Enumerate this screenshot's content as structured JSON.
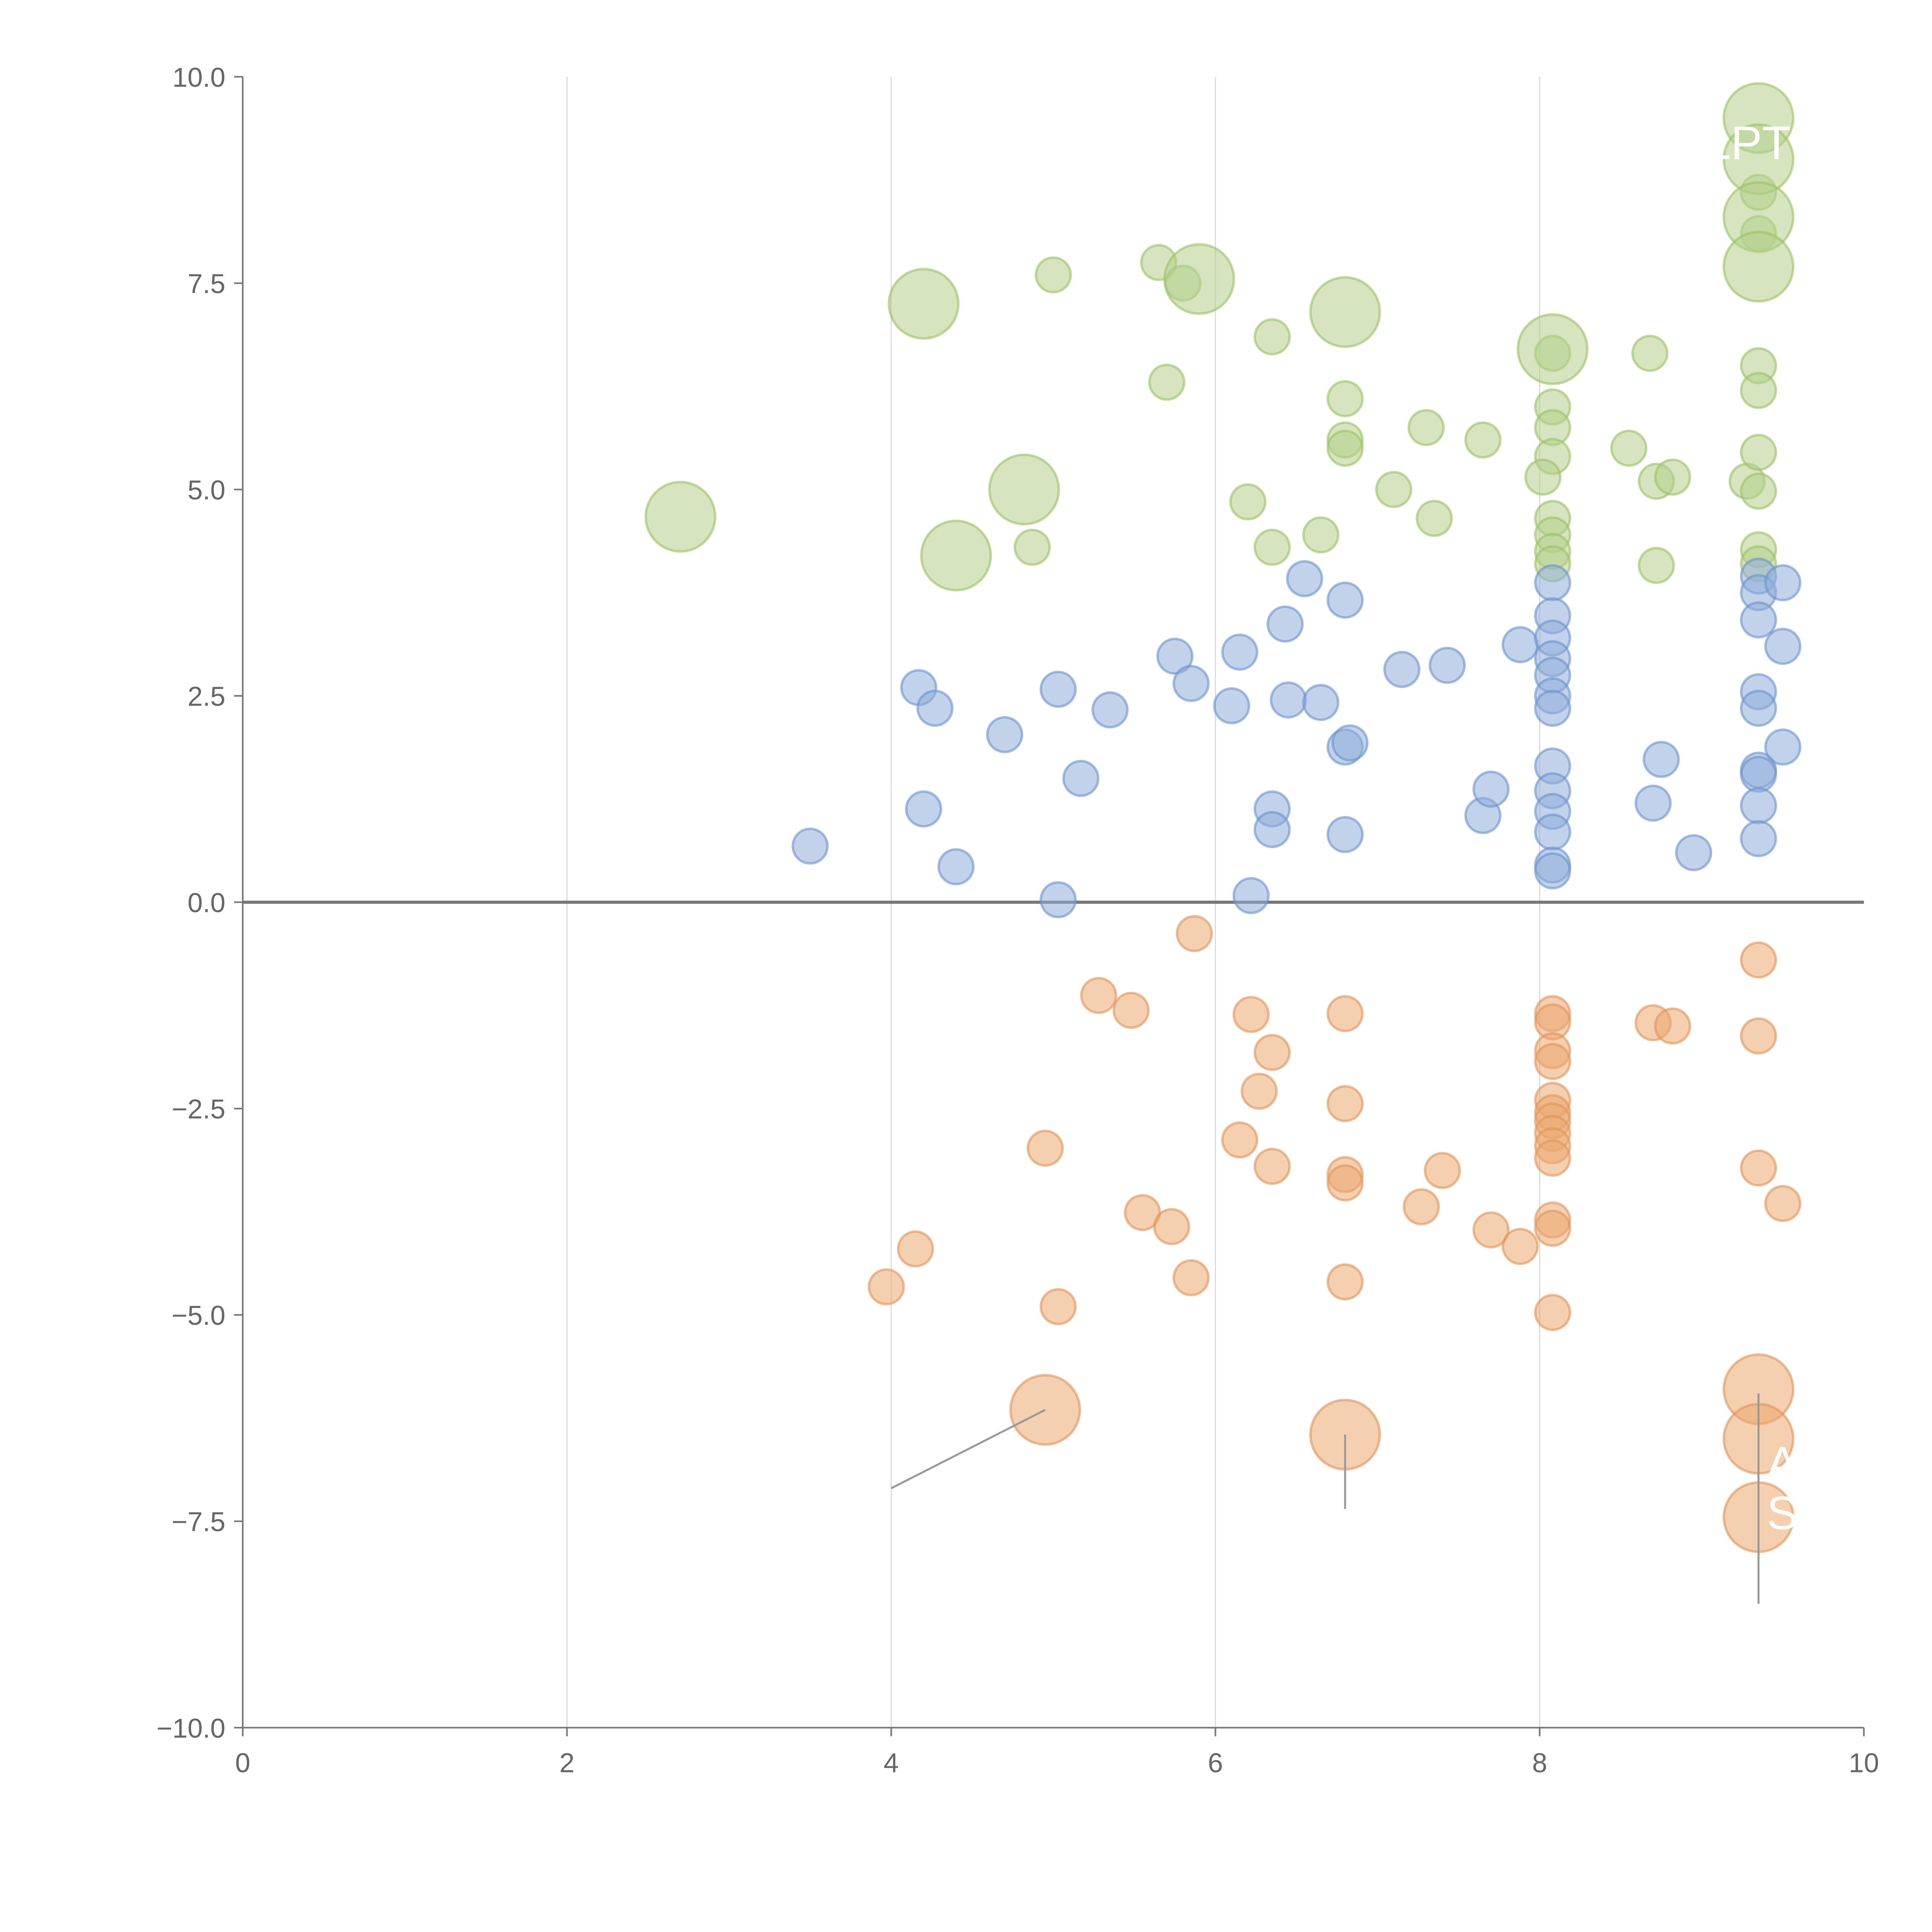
{
  "chart_data": {
    "type": "scatter",
    "title": "",
    "xlabel": "",
    "ylabel": "",
    "xlim": [
      0,
      10
    ],
    "ylim": [
      -10,
      10
    ],
    "x_ticks": [
      "0",
      "2",
      "4",
      "6",
      "8",
      "10"
    ],
    "x_tick_values": [
      0,
      2,
      4,
      6,
      8,
      10
    ],
    "y_ticks": [
      "10.0",
      "7.5",
      "5.0",
      "2.5",
      "0.0",
      "−2.5",
      "−5.0",
      "−7.5",
      "−10.0"
    ],
    "y_tick_values": [
      10,
      7.5,
      5,
      2.5,
      0,
      -2.5,
      -5,
      -7.5,
      -10
    ],
    "grid": "vertical",
    "zero_line": true,
    "colors": {
      "green": "#b5d08a",
      "green_stroke": "#9bc064",
      "blue": "#8fadd8",
      "blue_stroke": "#6b93cc",
      "orange": "#eba870",
      "orange_stroke": "#e0955a"
    },
    "series": [
      {
        "name": "green",
        "points": [
          [
            5.0,
            7.6,
            1
          ],
          [
            5.65,
            7.75,
            1
          ],
          [
            5.8,
            7.5,
            1
          ],
          [
            6.35,
            6.85,
            1
          ],
          [
            5.7,
            6.3,
            1
          ],
          [
            6.8,
            6.1,
            1
          ],
          [
            6.8,
            5.6,
            1
          ],
          [
            6.8,
            5.5,
            1
          ],
          [
            7.3,
            5.75,
            1
          ],
          [
            7.65,
            5.6,
            1
          ],
          [
            7.1,
            5.0,
            1
          ],
          [
            6.2,
            4.85,
            1
          ],
          [
            6.35,
            4.3,
            1
          ],
          [
            6.65,
            4.45,
            1
          ],
          [
            7.35,
            4.65,
            1
          ],
          [
            4.87,
            4.3,
            1
          ],
          [
            8.08,
            6.65,
            1
          ],
          [
            8.08,
            6.0,
            1
          ],
          [
            8.08,
            5.75,
            1
          ],
          [
            8.08,
            5.4,
            1
          ],
          [
            8.02,
            5.15,
            1
          ],
          [
            8.08,
            4.65,
            1
          ],
          [
            8.08,
            4.45,
            1
          ],
          [
            8.08,
            4.25,
            1
          ],
          [
            8.08,
            4.1,
            1
          ],
          [
            8.55,
            5.5,
            1
          ],
          [
            8.68,
            6.65,
            1
          ],
          [
            8.72,
            5.1,
            1
          ],
          [
            8.82,
            5.15,
            1
          ],
          [
            8.72,
            4.08,
            1
          ],
          [
            9.28,
            5.1,
            1
          ],
          [
            9.35,
            6.5,
            1
          ],
          [
            9.35,
            6.2,
            1
          ],
          [
            9.35,
            5.45,
            1
          ],
          [
            9.35,
            4.98,
            1
          ],
          [
            9.35,
            4.27,
            1
          ],
          [
            9.35,
            4.1,
            1
          ],
          [
            9.35,
            8.1,
            1
          ],
          [
            9.35,
            8.6,
            1
          ],
          [
            4.2,
            7.25,
            4
          ],
          [
            5.9,
            7.55,
            4
          ],
          [
            6.8,
            7.15,
            4
          ],
          [
            8.08,
            6.7,
            4
          ],
          [
            4.82,
            5.0,
            4
          ],
          [
            2.7,
            4.67,
            4
          ],
          [
            4.4,
            4.2,
            4
          ],
          [
            9.35,
            9.5,
            4
          ],
          [
            9.35,
            9.0,
            4
          ],
          [
            9.35,
            8.3,
            4
          ],
          [
            9.35,
            7.7,
            4
          ]
        ]
      },
      {
        "name": "blue",
        "points": [
          [
            3.5,
            0.68,
            1
          ],
          [
            4.17,
            2.6,
            1
          ],
          [
            4.27,
            2.35,
            1
          ],
          [
            4.2,
            1.13,
            1
          ],
          [
            4.4,
            0.43,
            1
          ],
          [
            4.7,
            2.03,
            1
          ],
          [
            5.03,
            2.58,
            1
          ],
          [
            5.17,
            1.5,
            1
          ],
          [
            5.35,
            2.33,
            1
          ],
          [
            5.03,
            0.03,
            1
          ],
          [
            5.75,
            2.98,
            1
          ],
          [
            5.85,
            2.65,
            1
          ],
          [
            6.1,
            2.38,
            1
          ],
          [
            6.15,
            3.03,
            1
          ],
          [
            6.35,
            1.13,
            1
          ],
          [
            6.35,
            0.88,
            1
          ],
          [
            6.22,
            0.08,
            1
          ],
          [
            6.43,
            3.37,
            1
          ],
          [
            6.45,
            2.45,
            1
          ],
          [
            6.55,
            3.92,
            1
          ],
          [
            6.65,
            2.42,
            1
          ],
          [
            6.8,
            3.66,
            1
          ],
          [
            6.8,
            1.88,
            1
          ],
          [
            6.83,
            1.93,
            1
          ],
          [
            6.8,
            0.82,
            1
          ],
          [
            7.15,
            2.82,
            1
          ],
          [
            7.43,
            2.87,
            1
          ],
          [
            7.65,
            1.05,
            1
          ],
          [
            7.7,
            1.37,
            1
          ],
          [
            7.88,
            3.12,
            1
          ],
          [
            8.08,
            3.87,
            1
          ],
          [
            8.08,
            3.47,
            1
          ],
          [
            8.08,
            3.2,
            1
          ],
          [
            8.08,
            2.95,
            1
          ],
          [
            8.08,
            2.75,
            1
          ],
          [
            8.08,
            2.5,
            1
          ],
          [
            8.08,
            2.35,
            1
          ],
          [
            8.08,
            1.65,
            1
          ],
          [
            8.08,
            1.35,
            1
          ],
          [
            8.08,
            1.1,
            1
          ],
          [
            8.08,
            0.85,
            1
          ],
          [
            8.08,
            0.45,
            1
          ],
          [
            8.08,
            0.38,
            1
          ],
          [
            8.7,
            1.2,
            1
          ],
          [
            8.75,
            1.73,
            1
          ],
          [
            8.95,
            0.6,
            1
          ],
          [
            9.35,
            3.95,
            1
          ],
          [
            9.35,
            3.75,
            1
          ],
          [
            9.35,
            3.42,
            1
          ],
          [
            9.35,
            2.55,
            1
          ],
          [
            9.35,
            2.35,
            1
          ],
          [
            9.35,
            1.6,
            1
          ],
          [
            9.35,
            1.55,
            1
          ],
          [
            9.35,
            1.17,
            1
          ],
          [
            9.35,
            0.77,
            1
          ],
          [
            9.5,
            3.87,
            1
          ],
          [
            9.5,
            3.1,
            1
          ],
          [
            9.5,
            1.88,
            1
          ]
        ]
      },
      {
        "name": "orange",
        "points": [
          [
            5.87,
            -0.38,
            1
          ],
          [
            5.28,
            -1.13,
            1
          ],
          [
            5.48,
            -1.31,
            1
          ],
          [
            6.22,
            -1.36,
            1
          ],
          [
            6.35,
            -1.82,
            1
          ],
          [
            6.27,
            -2.29,
            1
          ],
          [
            6.8,
            -1.35,
            1
          ],
          [
            6.8,
            -2.44,
            1
          ],
          [
            4.95,
            -2.98,
            1
          ],
          [
            6.15,
            -2.88,
            1
          ],
          [
            6.35,
            -3.2,
            1
          ],
          [
            6.8,
            -3.3,
            1
          ],
          [
            6.8,
            -3.4,
            1
          ],
          [
            7.27,
            -3.69,
            1
          ],
          [
            7.4,
            -3.25,
            1
          ],
          [
            5.55,
            -3.76,
            1
          ],
          [
            5.73,
            -3.93,
            1
          ],
          [
            7.7,
            -3.97,
            1
          ],
          [
            7.88,
            -4.17,
            1
          ],
          [
            4.15,
            -4.2,
            1
          ],
          [
            3.97,
            -4.66,
            1
          ],
          [
            5.85,
            -4.55,
            1
          ],
          [
            5.03,
            -4.9,
            1
          ],
          [
            6.8,
            -4.6,
            1
          ],
          [
            8.08,
            -1.35,
            1
          ],
          [
            8.08,
            -1.45,
            1
          ],
          [
            8.08,
            -1.8,
            1
          ],
          [
            8.08,
            -1.93,
            1
          ],
          [
            8.08,
            -2.4,
            1
          ],
          [
            8.08,
            -2.55,
            1
          ],
          [
            8.08,
            -2.65,
            1
          ],
          [
            8.08,
            -2.8,
            1
          ],
          [
            8.08,
            -2.95,
            1
          ],
          [
            8.08,
            -3.1,
            1
          ],
          [
            8.08,
            -3.85,
            1
          ],
          [
            8.08,
            -3.95,
            1
          ],
          [
            8.08,
            -4.97,
            1
          ],
          [
            8.7,
            -1.46,
            1
          ],
          [
            8.82,
            -1.5,
            1
          ],
          [
            9.35,
            -0.7,
            1
          ],
          [
            9.35,
            -1.62,
            1
          ],
          [
            9.35,
            -3.22,
            1
          ],
          [
            9.5,
            -3.65,
            1
          ],
          [
            4.95,
            -6.15,
            4
          ],
          [
            6.8,
            -6.45,
            4
          ],
          [
            9.35,
            -5.9,
            4
          ],
          [
            9.35,
            -6.5,
            4
          ],
          [
            9.35,
            -7.45,
            4
          ]
        ]
      }
    ],
    "leader_lines": [
      [
        4.95,
        -6.15,
        4.0,
        -7.1
      ],
      [
        6.8,
        -6.45,
        6.8,
        -7.35
      ],
      [
        9.35,
        -5.95,
        9.35,
        -8.5
      ]
    ],
    "annotations": [
      {
        "text": "LPT",
        "x": 9.55,
        "y": 9.2,
        "anchor": "end"
      },
      {
        "text": "A",
        "x": 9.4,
        "y": -6.8,
        "anchor": "start"
      },
      {
        "text": "S",
        "x": 9.4,
        "y": -7.4,
        "anchor": "start"
      }
    ]
  }
}
